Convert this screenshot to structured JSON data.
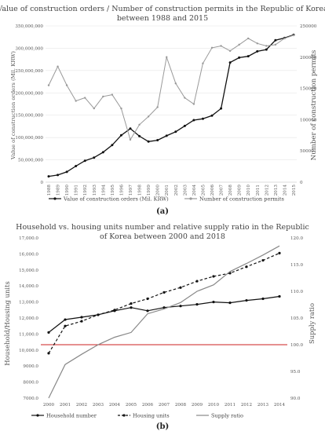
{
  "chart_data": [
    {
      "type": "line",
      "title_lines": [
        "Value of construction orders / Number of construction permits in the Republic of Korea",
        "between 1988 and 2015"
      ],
      "ylabel_left": "Value of construction orders (Mil. KRW)",
      "ylabel_right": "Number of construction permits",
      "panel_label": "(a)",
      "x": [
        "1988",
        "1989",
        "1990",
        "1991",
        "1992",
        "1993",
        "1994",
        "1995",
        "1996",
        "1997",
        "1998",
        "1999",
        "2000",
        "2001",
        "2002",
        "2003",
        "2004",
        "2005",
        "2006",
        "2007",
        "2008",
        "2009",
        "2010",
        "2011",
        "2012",
        "2013",
        "2014",
        "2015"
      ],
      "left_ticks": [
        "0",
        "50,000,000",
        "100,000,000",
        "150,000,000",
        "200,000,000",
        "250,000,000",
        "300,000,000",
        "350,000,000"
      ],
      "right_ticks": [
        "0",
        "50000",
        "100000",
        "150000",
        "200000",
        "250000"
      ],
      "ylim_left": [
        0,
        350000000
      ],
      "ylim_right": [
        0,
        250000
      ],
      "series": [
        {
          "name": "Value of construction orders (Mil. KRW)",
          "axis": "left",
          "color": "#111111",
          "marker": true,
          "values": [
            13000000,
            16000000,
            23000000,
            36000000,
            48000000,
            55000000,
            67000000,
            83000000,
            105000000,
            120000000,
            103000000,
            91000000,
            94000000,
            104000000,
            113000000,
            126000000,
            139000000,
            142000000,
            149000000,
            165000000,
            268000000,
            279000000,
            282000000,
            293000000,
            297000000,
            318000000,
            323000000,
            330000000
          ]
        },
        {
          "name": "Number of construction permits",
          "axis": "right",
          "color": "#999999",
          "marker": true,
          "values": [
            155000,
            185000,
            155000,
            130000,
            135000,
            118000,
            137000,
            140000,
            118000,
            68000,
            92000,
            105000,
            120000,
            200000,
            158000,
            135000,
            125000,
            190000,
            215000,
            218000,
            210000,
            220000,
            230000,
            222000,
            218000,
            220000,
            230000,
            235000
          ]
        }
      ]
    },
    {
      "type": "line",
      "title_lines": [
        "Household vs. housing units number and relative supply ratio in the Republic",
        "of Korea between 2000 and 2018"
      ],
      "ylabel_left": "Household/Housing units",
      "ylabel_right": "Supply ratio",
      "panel_label": "(b)",
      "x": [
        "2000",
        "2001",
        "2002",
        "2003",
        "2004",
        "2005",
        "2006",
        "2007",
        "2008",
        "2009",
        "2010",
        "2011",
        "2012",
        "2013",
        "2014"
      ],
      "left_ticks": [
        "7000.0",
        "8000.0",
        "9000.0",
        "10,000.0",
        "11,000.0",
        "12,000.0",
        "13,000.0",
        "14,000.0",
        "15,000.0",
        "16,000.0",
        "17,000.0"
      ],
      "right_ticks": [
        "90.0",
        "95.0",
        "100.0",
        "105.0",
        "110.0",
        "115.0",
        "120.0"
      ],
      "ylim_left": [
        7000,
        17000
      ],
      "ylim_right": [
        90,
        120
      ],
      "reference_line": {
        "axis": "right",
        "value": 100,
        "color": "#cc2222"
      },
      "series": [
        {
          "name": "Household number",
          "axis": "left",
          "color": "#111111",
          "dash": false,
          "marker": true,
          "values": [
            11100,
            11900,
            12050,
            12200,
            12450,
            12650,
            12450,
            12650,
            12750,
            12850,
            13000,
            12950,
            13100,
            13200,
            13350
          ]
        },
        {
          "name": "Housing units",
          "axis": "left",
          "color": "#111111",
          "dash": true,
          "marker": true,
          "values": [
            9800,
            11500,
            11800,
            12200,
            12500,
            12900,
            13200,
            13600,
            13900,
            14300,
            14600,
            14800,
            15200,
            15600,
            16050
          ]
        },
        {
          "name": "Supply ratio",
          "axis": "right",
          "color": "#888888",
          "dash": false,
          "marker": false,
          "values": [
            90.0,
            96.3,
            98.2,
            100.0,
            101.4,
            102.3,
            105.8,
            106.7,
            107.9,
            110.0,
            111.2,
            113.7,
            115.2,
            116.8,
            118.5
          ]
        }
      ]
    }
  ]
}
